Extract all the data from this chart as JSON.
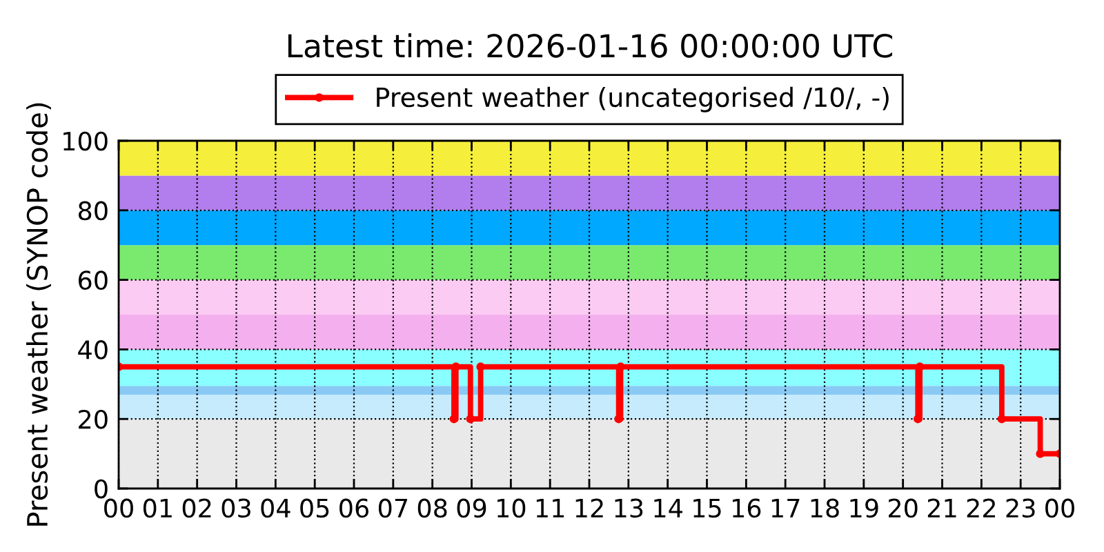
{
  "chart_data": {
    "type": "step",
    "title": "Latest time: 2026-01-16 00:00:00 UTC",
    "ylabel": "Present weather (SYNOP code)",
    "x": [
      0,
      8.55,
      8.6,
      8.97,
      9.23,
      12.75,
      12.8,
      20.38,
      20.43,
      22.52,
      23.5,
      24
    ],
    "series": [
      {
        "name": "Present weather (uncategorised /10/, -)",
        "color": "#ff0000",
        "values": [
          35,
          20,
          35,
          20,
          35,
          20,
          35,
          20,
          35,
          20,
          10,
          10
        ]
      }
    ],
    "xlim": [
      0,
      24
    ],
    "xticks": [
      {
        "value": 0,
        "label": "00"
      },
      {
        "value": 1,
        "label": "01"
      },
      {
        "value": 2,
        "label": "02"
      },
      {
        "value": 3,
        "label": "03"
      },
      {
        "value": 4,
        "label": "04"
      },
      {
        "value": 5,
        "label": "05"
      },
      {
        "value": 6,
        "label": "06"
      },
      {
        "value": 7,
        "label": "07"
      },
      {
        "value": 8,
        "label": "08"
      },
      {
        "value": 9,
        "label": "09"
      },
      {
        "value": 10,
        "label": "10"
      },
      {
        "value": 11,
        "label": "11"
      },
      {
        "value": 12,
        "label": "12"
      },
      {
        "value": 13,
        "label": "13"
      },
      {
        "value": 14,
        "label": "14"
      },
      {
        "value": 15,
        "label": "15"
      },
      {
        "value": 16,
        "label": "16"
      },
      {
        "value": 17,
        "label": "17"
      },
      {
        "value": 18,
        "label": "18"
      },
      {
        "value": 19,
        "label": "19"
      },
      {
        "value": 20,
        "label": "20"
      },
      {
        "value": 21,
        "label": "21"
      },
      {
        "value": 22,
        "label": "22"
      },
      {
        "value": 23,
        "label": "23"
      },
      {
        "value": 24,
        "label": "00"
      }
    ],
    "ylim": [
      0,
      100
    ],
    "yticks": [
      0,
      20,
      40,
      60,
      80,
      100
    ],
    "bands": [
      {
        "axis": "y",
        "from": 0,
        "to": 20,
        "color": "#e9e9e9"
      },
      {
        "axis": "y",
        "from": 20,
        "to": 27,
        "color": "#c6ebfd"
      },
      {
        "axis": "y",
        "from": 27,
        "to": 29.5,
        "color": "#89c9f4"
      },
      {
        "axis": "y",
        "from": 29.5,
        "to": 40,
        "color": "#8affff"
      },
      {
        "axis": "y",
        "from": 40,
        "to": 50,
        "color": "#f4b0ee"
      },
      {
        "axis": "y",
        "from": 50,
        "to": 60,
        "color": "#fccbf4"
      },
      {
        "axis": "y",
        "from": 60,
        "to": 70,
        "color": "#7aea6f"
      },
      {
        "axis": "y",
        "from": 70,
        "to": 80,
        "color": "#00a8ff"
      },
      {
        "axis": "y",
        "from": 80,
        "to": 90,
        "color": "#b27ded"
      },
      {
        "axis": "y",
        "from": 90,
        "to": 100,
        "color": "#f5ef3b"
      }
    ],
    "grid": true,
    "legend": "top",
    "marker": "circle",
    "line_style": "solid"
  }
}
